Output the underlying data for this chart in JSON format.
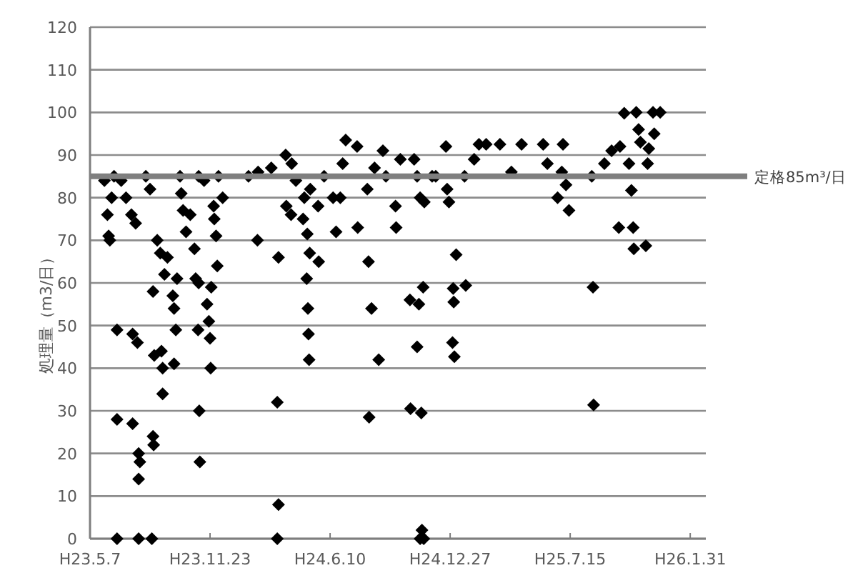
{
  "chart_data": {
    "type": "scatter",
    "ylabel": "処理量（m3/日）",
    "marker": "diamond",
    "grid": "y",
    "color": "#000000",
    "xlim": [
      "2011-05-07",
      "2014-02-26"
    ],
    "xticks": [
      {
        "value": "2011-05-07",
        "label": "H23.5.7"
      },
      {
        "value": "2011-11-23",
        "label": "H23.11.23"
      },
      {
        "value": "2012-06-10",
        "label": "H24.6.10"
      },
      {
        "value": "2012-12-27",
        "label": "H24.12.27"
      },
      {
        "value": "2013-07-15",
        "label": "H25.7.15"
      },
      {
        "value": "2014-01-31",
        "label": "H26.1.31"
      }
    ],
    "ylim": [
      0,
      120
    ],
    "yticks": [
      0,
      10,
      20,
      30,
      40,
      50,
      60,
      70,
      80,
      90,
      100,
      110,
      120
    ],
    "ref_lines": [
      {
        "axis": "y",
        "value": 85,
        "label": "定格85m³/日",
        "color": "#7f7f7f"
      }
    ],
    "x": [
      "2011-05-31",
      "2011-06-05",
      "2011-06-07",
      "2011-06-09",
      "2011-06-12",
      "2011-06-16",
      "2011-06-21",
      "2011-06-21",
      "2011-06-21",
      "2011-06-28",
      "2011-07-06",
      "2011-07-15",
      "2011-07-17",
      "2011-07-17",
      "2011-07-22",
      "2011-07-25",
      "2011-07-27",
      "2011-07-27",
      "2011-07-27",
      "2011-07-29",
      "2011-08-08",
      "2011-08-15",
      "2011-08-20",
      "2011-08-22",
      "2011-08-20",
      "2011-08-21",
      "2011-08-18",
      "2011-08-27",
      "2011-09-01",
      "2011-09-03",
      "2011-09-05",
      "2011-09-05",
      "2011-09-08",
      "2011-09-13",
      "2011-09-22",
      "2011-09-24",
      "2011-09-27",
      "2011-09-24",
      "2011-09-29",
      "2011-10-04",
      "2011-10-06",
      "2011-10-09",
      "2011-10-14",
      "2011-10-21",
      "2011-10-28",
      "2011-10-30",
      "2011-11-04",
      "2011-11-04",
      "2011-11-03",
      "2011-11-05",
      "2011-11-06",
      "2011-11-13",
      "2011-11-18",
      "2011-11-21",
      "2011-11-23",
      "2011-11-24",
      "2011-11-30",
      "2011-12-03",
      "2011-12-05",
      "2011-11-25",
      "2011-12-07",
      "2011-12-14",
      "2011-11-29",
      "2012-01-26",
      "2012-02-10",
      "2012-02-11",
      "2012-03-04",
      "2012-03-16",
      "2012-03-14",
      "2012-03-16",
      "2012-03-14",
      "2012-03-28",
      "2012-03-29",
      "2012-04-07",
      "2012-04-06",
      "2012-04-14",
      "2012-04-26",
      "2012-04-28",
      "2012-05-03",
      "2012-05-02",
      "2012-05-04",
      "2012-05-05",
      "2012-05-06",
      "2012-05-07",
      "2012-05-08",
      "2012-05-22",
      "2012-05-21",
      "2012-05-31",
      "2012-06-15",
      "2012-06-20",
      "2012-06-27",
      "2012-07-01",
      "2012-07-06",
      "2012-07-25",
      "2012-07-26",
      "2012-08-11",
      "2012-08-13",
      "2012-08-14",
      "2012-08-18",
      "2012-08-30",
      "2012-08-23",
      "2012-09-06",
      "2012-09-11",
      "2012-09-27",
      "2012-09-28",
      "2012-10-05",
      "2012-10-21",
      "2012-10-22",
      "2012-10-28",
      "2012-11-05",
      "2012-11-02",
      "2012-11-09",
      "2012-11-12",
      "2012-11-07",
      "2012-11-10",
      "2012-11-13",
      "2012-11-02",
      "2012-11-07",
      "2012-11-14",
      "2012-11-27",
      "2012-12-03",
      "2012-12-20",
      "2012-12-22",
      "2012-12-25",
      "2013-01-01",
      "2013-01-02",
      "2012-12-31",
      "2013-01-03",
      "2013-01-06",
      "2013-01-22",
      "2013-01-20",
      "2013-02-05",
      "2013-02-13",
      "2013-02-25",
      "2013-03-20",
      "2013-04-08",
      "2013-04-25",
      "2013-05-31",
      "2013-06-07",
      "2013-07-03",
      "2013-07-01",
      "2013-06-24",
      "2013-07-08",
      "2013-07-13",
      "2013-08-22",
      "2013-08-23",
      "2013-08-20",
      "2013-09-10",
      "2013-09-22",
      "2013-10-04",
      "2013-10-06",
      "2013-10-21",
      "2013-10-28",
      "2013-10-29",
      "2013-10-25",
      "2013-10-13",
      "2013-11-02",
      "2013-11-06",
      "2013-11-09",
      "2013-11-18",
      "2013-11-21",
      "2013-11-23",
      "2013-11-30",
      "2013-12-12",
      "2013-12-02"
    ],
    "values": [
      84,
      76,
      71,
      70,
      80,
      85,
      49,
      28,
      0,
      84,
      80,
      76,
      48,
      27,
      74,
      46,
      20,
      14,
      0,
      18,
      85,
      82,
      58,
      43,
      24,
      22,
      0,
      70,
      67,
      44,
      40,
      34,
      62,
      66,
      57,
      54,
      49,
      41,
      61,
      85,
      81,
      77,
      72,
      76,
      68,
      61,
      85,
      60,
      49,
      30,
      18,
      84,
      55,
      51,
      47,
      40,
      75,
      71,
      64,
      59,
      85,
      80,
      78,
      85,
      70,
      86,
      87,
      66,
      32,
      8,
      0,
      90,
      78,
      88,
      76,
      84,
      75,
      80,
      71.5,
      61,
      54,
      48,
      42,
      67,
      82,
      65,
      78,
      85,
      80,
      72,
      80,
      88,
      93.5,
      92,
      73,
      82,
      65,
      28.5,
      54,
      42,
      87,
      91,
      85,
      78,
      73,
      89,
      56,
      30.5,
      89,
      55,
      45,
      29.5,
      59,
      0,
      2,
      0,
      85,
      80,
      79,
      85,
      85,
      92,
      82,
      79,
      58.7,
      55.5,
      46,
      42.7,
      66.6,
      59.4,
      85,
      89,
      92.5,
      92.5,
      92.5,
      86,
      92.5,
      92.5,
      88,
      92.5,
      86,
      80,
      83,
      77,
      59,
      31.4,
      85,
      88,
      91,
      73,
      92,
      88,
      73,
      68,
      81.7,
      99.8,
      100,
      96,
      93,
      68.7,
      88,
      91.5,
      100,
      100,
      95
    ]
  }
}
